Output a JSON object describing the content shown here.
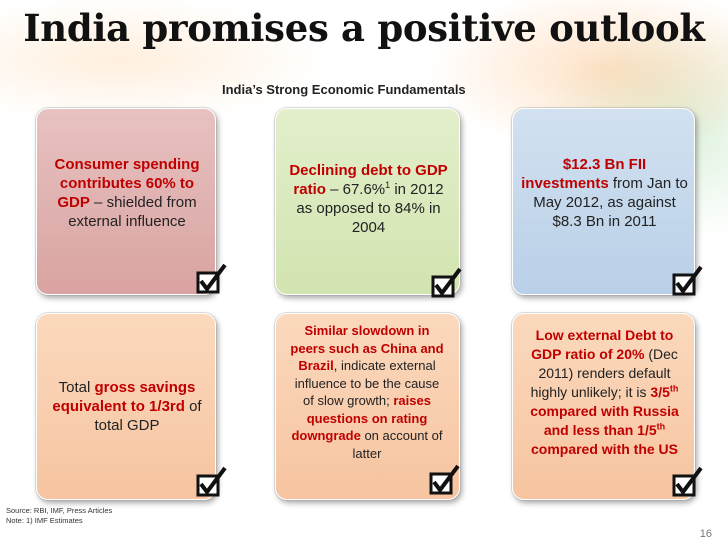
{
  "title": "India promises a positive outlook",
  "subtitle": "India’s Strong Economic Fundamentals",
  "cards": {
    "consumer": {
      "hl1": "Consumer spending contributes 60% to GDP",
      "rest": " – shielded from external influence"
    },
    "debt": {
      "hl1": "Declining debt to GDP ratio",
      "rest1": " – 67.6%",
      "sup": "1",
      "rest2": " in 2012 as opposed to 84% in 2004"
    },
    "fii": {
      "hl1": "$12.3 Bn FII investments",
      "rest": " from Jan to May 2012, as against $8.3 Bn in 2011"
    },
    "savings": {
      "pre": "Total ",
      "hl1": "gross savings equivalent to 1/3rd",
      "rest": " of total GDP"
    },
    "slowdown": {
      "hl1": "Similar slowdown in peers such as China and Brazil",
      "rest1": ", indicate external influence to be the cause of slow growth; ",
      "hl2": "raises questions on rating downgrade",
      "rest2": " on account of latter"
    },
    "external": {
      "hl1": "Low external Debt to GDP ratio of 20%",
      "rest1": " (Dec 2011) renders default highly unlikely; it is ",
      "hl2a": "3/5",
      "sup1": "th",
      "hl2b": " compared with Russia and less than 1/5",
      "sup2": "th",
      "hl2c": " compared with the US"
    }
  },
  "source": "Source: RBI, IMF, Press Articles",
  "note": "Note: 1) IMF Estimates",
  "page_number": "16",
  "icons": {
    "check": "checkbox-tick-icon"
  },
  "colors": {
    "highlight": "#c00000",
    "pink": "#dcaaa8",
    "green": "#d8e8bb",
    "blue": "#c3d7ec",
    "peach": "#f8cdab"
  }
}
